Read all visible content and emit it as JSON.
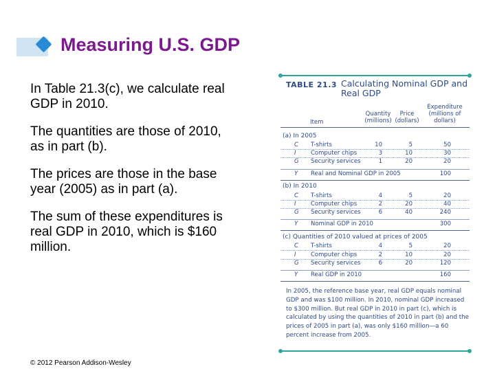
{
  "slide": {
    "title": "Measuring U.S. GDP",
    "bullets": [
      "In Table 21.3(c), we calculate real GDP in 2010.",
      "The quantities are those of 2010, as in part (b).",
      "The prices are those in the base year (2005) as in part (a).",
      "The sum of these expenditures is real GDP in 2010, which is $160 million."
    ],
    "footer": "© 2012 Pearson Addison-Wesley"
  },
  "table": {
    "label": "TABLE 21.3",
    "title": "Calculating Nominal GDP and Real GDP",
    "columns": {
      "item": "Item",
      "quantity": "Quantity (millions)",
      "price": "Price (dollars)",
      "expenditure": "Expenditure (millions of dollars)"
    },
    "sections": [
      {
        "heading": "(a) In 2005",
        "rows": [
          {
            "symbol": "C",
            "item": "T-shirts",
            "quantity": "10",
            "price": "5",
            "expenditure": "50"
          },
          {
            "symbol": "I",
            "item": "Computer chips",
            "quantity": "3",
            "price": "10",
            "expenditure": "30"
          },
          {
            "symbol": "G",
            "item": "Security services",
            "quantity": "1",
            "price": "20",
            "expenditure": "20"
          },
          {
            "symbol": "Y",
            "item": "Real and Nominal GDP in 2005",
            "quantity": "",
            "price": "",
            "expenditure": "100"
          }
        ]
      },
      {
        "heading": "(b) In 2010",
        "rows": [
          {
            "symbol": "C",
            "item": "T-shirts",
            "quantity": "4",
            "price": "5",
            "expenditure": "20"
          },
          {
            "symbol": "I",
            "item": "Computer chips",
            "quantity": "2",
            "price": "20",
            "expenditure": "40"
          },
          {
            "symbol": "G",
            "item": "Security services",
            "quantity": "6",
            "price": "40",
            "expenditure": "240"
          },
          {
            "symbol": "Y",
            "item": "Nominal GDP in 2010",
            "quantity": "",
            "price": "",
            "expenditure": "300"
          }
        ]
      },
      {
        "heading": "(c) Quantities of 2010 valued at prices of 2005",
        "rows": [
          {
            "symbol": "C",
            "item": "T-shirts",
            "quantity": "4",
            "price": "5",
            "expenditure": "20"
          },
          {
            "symbol": "I",
            "item": "Computer chips",
            "quantity": "2",
            "price": "10",
            "expenditure": "20"
          },
          {
            "symbol": "G",
            "item": "Security services",
            "quantity": "6",
            "price": "20",
            "expenditure": "120"
          },
          {
            "symbol": "Y",
            "item": "Real GDP in 2010",
            "quantity": "",
            "price": "",
            "expenditure": "160"
          }
        ]
      }
    ],
    "note": "In 2005, the reference base year, real GDP equals nominal GDP and was $100 million. In 2010, nominal GDP increased to $300 million. But real GDP in 2010 in part (c), which is calculated by using the quantities of 2010 in part (b) and the prices of 2005 in part (a), was only $160 million—a 60 percent increase from 2005."
  },
  "colors": {
    "title": "#7a1a8c",
    "accent_bar": "#cfe3f3",
    "accent_diamond": "#2a8ad4",
    "table_text": "#2e4a86",
    "table_rule": "#2ba79d"
  }
}
